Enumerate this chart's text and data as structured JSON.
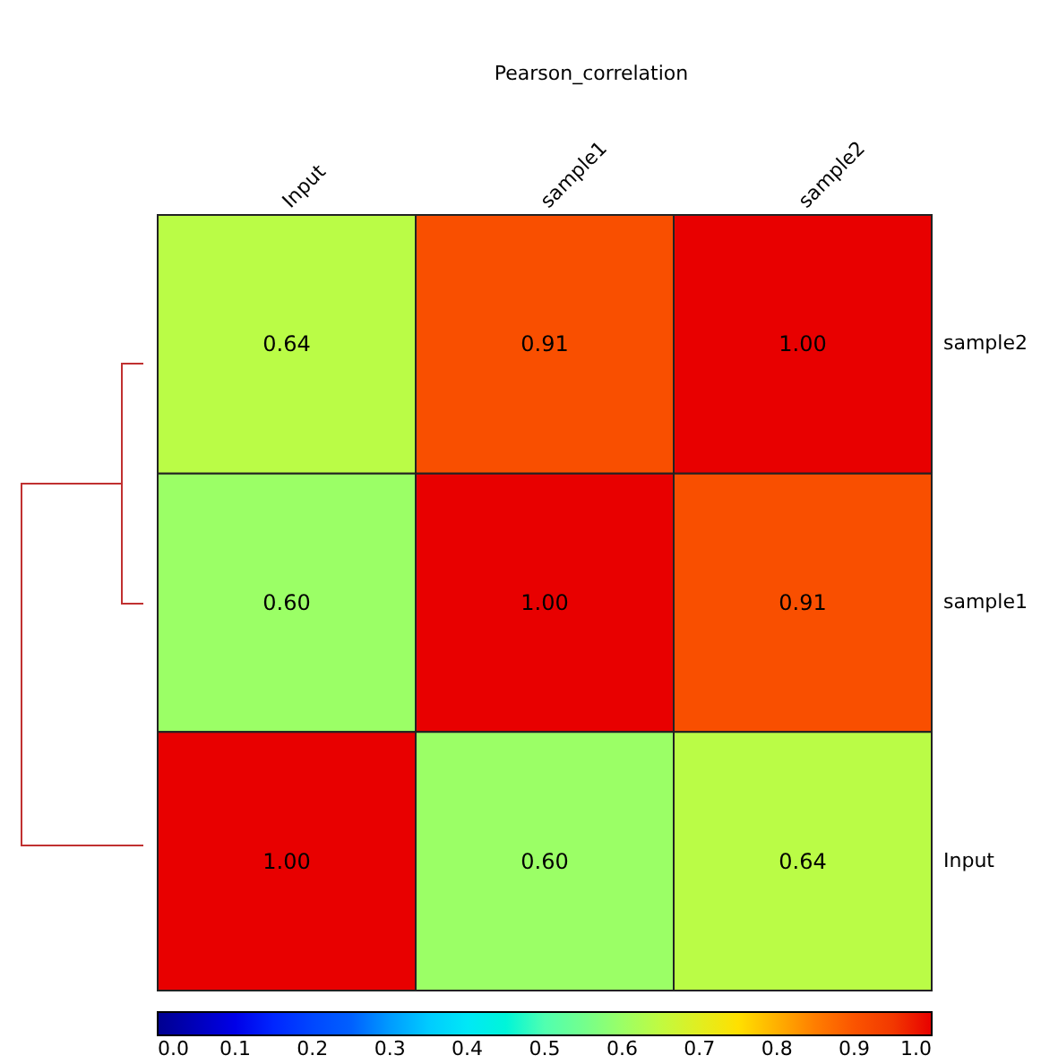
{
  "chart_data": {
    "type": "heatmap",
    "title": "Pearson_correlation",
    "categories": [
      "Input",
      "sample1",
      "sample2"
    ],
    "y_categories": [
      "sample2",
      "sample1",
      "Input"
    ],
    "cells": [
      [
        0.64,
        0.91,
        1.0
      ],
      [
        0.6,
        1.0,
        0.91
      ],
      [
        1.0,
        0.6,
        0.64
      ]
    ],
    "cell_labels": [
      [
        "0.64",
        "0.91",
        "1.00"
      ],
      [
        "0.60",
        "1.00",
        "0.91"
      ],
      [
        "1.00",
        "0.60",
        "0.64"
      ]
    ],
    "clim": [
      0,
      1
    ],
    "cticks": [
      {
        "value": 0,
        "label": "0.0"
      },
      {
        "value": 0.1,
        "label": "0.1"
      },
      {
        "value": 0.2,
        "label": "0.2"
      },
      {
        "value": 0.3,
        "label": "0.3"
      },
      {
        "value": 0.4,
        "label": "0.4"
      },
      {
        "value": 0.5,
        "label": "0.5"
      },
      {
        "value": 0.6,
        "label": "0.6"
      },
      {
        "value": 0.7,
        "label": "0.7"
      },
      {
        "value": 0.8,
        "label": "0.8"
      },
      {
        "value": 0.9,
        "label": "0.9"
      },
      {
        "value": 1,
        "label": "1.0"
      }
    ]
  }
}
